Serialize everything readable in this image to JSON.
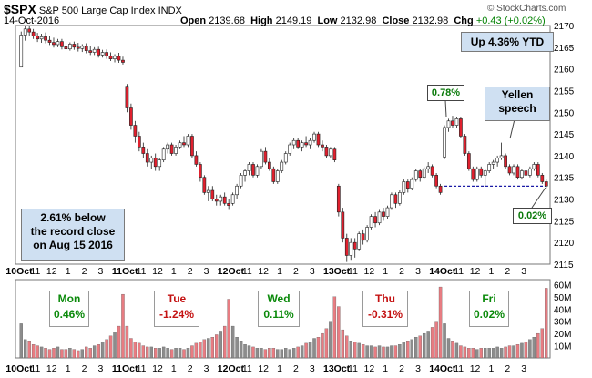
{
  "header": {
    "symbol": "$SPX",
    "name": "S&P 500 Large Cap Index",
    "exchange": "INDX",
    "date": "14-Oct-2016",
    "open_label": "Open",
    "open": "2139.68",
    "high_label": "High",
    "high": "2149.19",
    "low_label": "Low",
    "low": "2132.98",
    "close_label": "Close",
    "close": "2132.98",
    "chg_label": "Chg",
    "chg": "+0.43 (+0.02%)",
    "watermark": "© StockCharts.com"
  },
  "annotations": {
    "ytd": "Up 4.36% YTD",
    "record_line1": "2.61% below",
    "record_line2": "the record close",
    "record_line3": "on Aug 15 2016",
    "open_gain": "0.78%",
    "day_gain": "0.02%",
    "yellen_line1": "Yellen",
    "yellen_line2": "speech"
  },
  "days": [
    {
      "name": "Mon",
      "chg": "0.46%"
    },
    {
      "name": "Tue",
      "chg": "-1.24%"
    },
    {
      "name": "Wed",
      "chg": "0.11%"
    },
    {
      "name": "Thu",
      "chg": "-0.31%"
    },
    {
      "name": "Fri",
      "chg": "0.02%"
    }
  ],
  "colors": {
    "up": "#ffffff",
    "down": "#e0202e",
    "vol_up": "#8c8c8c",
    "vol_down": "#e87c82",
    "grid": "#cfcfcf",
    "ref_line": "#1a1aa6",
    "panel_bg": "#ffffff"
  },
  "chart_data": {
    "type": "candlestick",
    "interval": "intraday",
    "price_axis": {
      "min": 2115,
      "max": 2170,
      "ticks": [
        "2115",
        "2120",
        "2125",
        "2130",
        "2135",
        "2140",
        "2145",
        "2150",
        "2155",
        "2160",
        "2165",
        "2170"
      ]
    },
    "volume_axis": {
      "ticks": [
        "10M",
        "20M",
        "30M",
        "40M",
        "50M",
        "60M"
      ],
      "max": 60
    },
    "x_labels": [
      "10Oct",
      "11",
      "12",
      "1",
      "2",
      "3",
      "11Oct",
      "11",
      "12",
      "1",
      "2",
      "3",
      "12Oct",
      "11",
      "12",
      "1",
      "2",
      "3",
      "13Oct",
      "11",
      "12",
      "1",
      "2",
      "3",
      "14Oct",
      "11",
      "12",
      "1",
      "2",
      "3"
    ],
    "reference_line": 2132.98,
    "candles_per_day": 26,
    "candles": [
      [
        2160.4,
        2168.6,
        2160.4,
        2167.8
      ],
      [
        2167.8,
        2169.9,
        2166.5,
        2169.2
      ],
      [
        2169.2,
        2169.9,
        2167.6,
        2168.5
      ],
      [
        2168.5,
        2169.2,
        2166.9,
        2167.6
      ],
      [
        2167.6,
        2168.3,
        2166.2,
        2166.9
      ],
      [
        2166.9,
        2168.1,
        2166.0,
        2167.4
      ],
      [
        2167.4,
        2168.4,
        2165.9,
        2166.6
      ],
      [
        2166.6,
        2167.6,
        2165.5,
        2166.1
      ],
      [
        2166.1,
        2167.2,
        2164.9,
        2165.6
      ],
      [
        2165.6,
        2166.9,
        2165.0,
        2166.3
      ],
      [
        2166.3,
        2166.9,
        2164.5,
        2165.1
      ],
      [
        2165.1,
        2166.0,
        2164.0,
        2164.6
      ],
      [
        2164.6,
        2166.1,
        2164.2,
        2165.7
      ],
      [
        2165.7,
        2166.3,
        2164.4,
        2165.0
      ],
      [
        2165.0,
        2166.0,
        2164.0,
        2164.7
      ],
      [
        2164.7,
        2165.7,
        2163.9,
        2165.2
      ],
      [
        2165.2,
        2165.9,
        2163.6,
        2164.2
      ],
      [
        2164.2,
        2165.2,
        2163.2,
        2163.8
      ],
      [
        2163.8,
        2165.0,
        2163.2,
        2164.5
      ],
      [
        2164.5,
        2165.1,
        2162.6,
        2163.2
      ],
      [
        2163.2,
        2164.4,
        2162.6,
        2163.8
      ],
      [
        2163.8,
        2164.5,
        2162.3,
        2163.0
      ],
      [
        2163.0,
        2163.8,
        2161.8,
        2162.3
      ],
      [
        2162.3,
        2163.4,
        2161.5,
        2162.9
      ],
      [
        2162.9,
        2163.7,
        2161.4,
        2162.0
      ],
      [
        2162.0,
        2162.8,
        2161.0,
        2161.5
      ],
      [
        2156.0,
        2156.5,
        2150.0,
        2151.0
      ],
      [
        2151.0,
        2152.0,
        2146.0,
        2147.0
      ],
      [
        2147.0,
        2148.0,
        2143.0,
        2144.5
      ],
      [
        2144.5,
        2145.5,
        2141.0,
        2142.0
      ],
      [
        2142.0,
        2143.0,
        2139.5,
        2140.5
      ],
      [
        2140.5,
        2141.5,
        2137.5,
        2138.5
      ],
      [
        2138.5,
        2140.0,
        2137.0,
        2139.5
      ],
      [
        2139.5,
        2140.5,
        2136.5,
        2137.5
      ],
      [
        2137.5,
        2139.5,
        2136.5,
        2139.0
      ],
      [
        2139.0,
        2142.0,
        2138.5,
        2141.5
      ],
      [
        2141.5,
        2143.0,
        2140.5,
        2142.5
      ],
      [
        2142.5,
        2143.0,
        2140.0,
        2140.5
      ],
      [
        2140.5,
        2142.5,
        2140.0,
        2142.0
      ],
      [
        2142.0,
        2143.5,
        2141.5,
        2143.0
      ],
      [
        2143.0,
        2144.5,
        2142.0,
        2142.5
      ],
      [
        2142.5,
        2145.0,
        2142.0,
        2144.5
      ],
      [
        2144.5,
        2145.0,
        2139.5,
        2140.0
      ],
      [
        2140.0,
        2141.0,
        2137.5,
        2138.0
      ],
      [
        2138.0,
        2138.5,
        2134.0,
        2135.0
      ],
      [
        2135.0,
        2135.5,
        2131.0,
        2131.5
      ],
      [
        2131.5,
        2133.0,
        2129.5,
        2132.0
      ],
      [
        2132.0,
        2133.0,
        2129.5,
        2130.0
      ],
      [
        2130.0,
        2131.0,
        2128.5,
        2129.5
      ],
      [
        2129.5,
        2131.0,
        2128.5,
        2130.5
      ],
      [
        2130.5,
        2131.5,
        2128.5,
        2129.0
      ],
      [
        2129.0,
        2130.0,
        2127.5,
        2128.5
      ],
      [
        2129.0,
        2131.5,
        2128.5,
        2131.0
      ],
      [
        2131.0,
        2133.5,
        2130.0,
        2133.0
      ],
      [
        2133.0,
        2136.0,
        2132.5,
        2135.5
      ],
      [
        2135.5,
        2137.0,
        2134.0,
        2136.5
      ],
      [
        2136.5,
        2138.5,
        2135.5,
        2138.0
      ],
      [
        2138.0,
        2138.5,
        2135.0,
        2135.5
      ],
      [
        2135.5,
        2138.0,
        2135.0,
        2137.5
      ],
      [
        2137.5,
        2141.5,
        2137.0,
        2141.0
      ],
      [
        2141.0,
        2142.0,
        2138.0,
        2138.5
      ],
      [
        2138.5,
        2139.5,
        2136.5,
        2137.0
      ],
      [
        2137.0,
        2137.5,
        2133.5,
        2134.0
      ],
      [
        2134.0,
        2137.0,
        2133.5,
        2136.5
      ],
      [
        2136.5,
        2139.0,
        2136.0,
        2138.5
      ],
      [
        2138.5,
        2141.0,
        2138.0,
        2140.5
      ],
      [
        2140.5,
        2143.0,
        2140.0,
        2142.5
      ],
      [
        2142.5,
        2144.0,
        2141.5,
        2143.5
      ],
      [
        2143.5,
        2144.0,
        2141.5,
        2142.0
      ],
      [
        2142.0,
        2143.5,
        2141.0,
        2143.0
      ],
      [
        2143.0,
        2144.5,
        2142.0,
        2142.5
      ],
      [
        2142.5,
        2144.0,
        2141.5,
        2143.5
      ],
      [
        2143.5,
        2145.5,
        2143.0,
        2145.0
      ],
      [
        2145.0,
        2145.5,
        2142.0,
        2142.5
      ],
      [
        2142.5,
        2143.5,
        2141.0,
        2142.0
      ],
      [
        2142.0,
        2142.5,
        2139.5,
        2140.0
      ],
      [
        2140.0,
        2142.0,
        2139.5,
        2141.5
      ],
      [
        2141.5,
        2142.0,
        2138.5,
        2139.0
      ],
      [
        2133.0,
        2133.5,
        2126.0,
        2127.0
      ],
      [
        2127.0,
        2128.0,
        2120.0,
        2121.0
      ],
      [
        2121.0,
        2122.0,
        2115.5,
        2117.0
      ],
      [
        2117.0,
        2121.0,
        2116.0,
        2120.0
      ],
      [
        2120.0,
        2121.0,
        2116.5,
        2118.5
      ],
      [
        2118.5,
        2122.5,
        2118.0,
        2122.0
      ],
      [
        2122.0,
        2123.0,
        2119.5,
        2120.5
      ],
      [
        2120.5,
        2124.0,
        2120.0,
        2123.5
      ],
      [
        2123.5,
        2126.5,
        2123.0,
        2126.0
      ],
      [
        2126.0,
        2127.0,
        2123.5,
        2124.5
      ],
      [
        2124.5,
        2127.5,
        2124.0,
        2127.0
      ],
      [
        2127.0,
        2128.0,
        2125.0,
        2126.0
      ],
      [
        2126.0,
        2128.5,
        2125.5,
        2128.0
      ],
      [
        2128.0,
        2131.5,
        2127.5,
        2131.0
      ],
      [
        2131.0,
        2131.5,
        2128.0,
        2129.0
      ],
      [
        2129.0,
        2132.0,
        2128.5,
        2131.5
      ],
      [
        2131.5,
        2134.5,
        2131.0,
        2134.0
      ],
      [
        2134.0,
        2134.5,
        2131.5,
        2132.5
      ],
      [
        2132.5,
        2135.0,
        2132.0,
        2134.5
      ],
      [
        2134.5,
        2137.0,
        2134.0,
        2136.5
      ],
      [
        2136.5,
        2137.0,
        2134.0,
        2135.0
      ],
      [
        2135.0,
        2137.5,
        2134.5,
        2137.0
      ],
      [
        2137.0,
        2138.5,
        2136.0,
        2137.5
      ],
      [
        2137.5,
        2138.0,
        2135.0,
        2135.5
      ],
      [
        2135.5,
        2136.0,
        2132.5,
        2133.0
      ],
      [
        2133.0,
        2133.5,
        2131.0,
        2131.5
      ],
      [
        2139.7,
        2147.0,
        2139.2,
        2146.5
      ],
      [
        2146.5,
        2148.5,
        2145.5,
        2148.0
      ],
      [
        2148.0,
        2149.2,
        2146.5,
        2147.0
      ],
      [
        2147.0,
        2149.0,
        2146.5,
        2148.5
      ],
      [
        2148.5,
        2148.8,
        2144.0,
        2144.5
      ],
      [
        2144.5,
        2145.0,
        2140.0,
        2140.5
      ],
      [
        2140.5,
        2141.0,
        2136.5,
        2137.0
      ],
      [
        2137.0,
        2137.5,
        2134.0,
        2134.5
      ],
      [
        2134.5,
        2137.5,
        2134.0,
        2137.0
      ],
      [
        2137.0,
        2137.5,
        2135.0,
        2135.5
      ],
      [
        2135.5,
        2137.0,
        2133.0,
        2136.5
      ],
      [
        2136.5,
        2138.5,
        2136.0,
        2138.0
      ],
      [
        2138.0,
        2139.0,
        2137.0,
        2138.5
      ],
      [
        2138.5,
        2140.0,
        2137.5,
        2139.5
      ],
      [
        2139.5,
        2143.0,
        2139.0,
        2140.0
      ],
      [
        2140.0,
        2140.5,
        2137.0,
        2137.5
      ],
      [
        2137.5,
        2138.0,
        2135.5,
        2136.0
      ],
      [
        2136.0,
        2138.0,
        2135.5,
        2137.5
      ],
      [
        2137.5,
        2138.0,
        2134.5,
        2135.0
      ],
      [
        2135.0,
        2137.0,
        2134.5,
        2136.5
      ],
      [
        2136.5,
        2137.0,
        2135.0,
        2135.5
      ],
      [
        2135.5,
        2137.5,
        2135.0,
        2137.0
      ],
      [
        2137.0,
        2138.5,
        2136.5,
        2138.0
      ],
      [
        2138.0,
        2138.5,
        2135.0,
        2135.5
      ],
      [
        2135.5,
        2136.0,
        2133.5,
        2134.0
      ],
      [
        2134.0,
        2134.5,
        2132.5,
        2133.0
      ]
    ],
    "volume": [
      [
        28,
        15,
        14,
        11,
        10,
        9,
        8,
        7,
        8,
        9,
        7,
        7,
        8,
        7,
        6,
        7,
        9,
        8,
        10,
        11,
        13,
        15,
        18,
        21,
        26,
        52
      ],
      [
        26,
        16,
        13,
        12,
        10,
        9,
        9,
        8,
        8,
        9,
        8,
        7,
        8,
        8,
        7,
        8,
        10,
        12,
        13,
        15,
        16,
        17,
        19,
        22,
        26,
        48
      ],
      [
        26,
        17,
        14,
        11,
        10,
        9,
        8,
        8,
        7,
        8,
        8,
        7,
        7,
        8,
        7,
        8,
        9,
        10,
        12,
        13,
        16,
        17,
        20,
        24,
        30,
        50
      ],
      [
        42,
        23,
        18,
        14,
        13,
        12,
        11,
        10,
        10,
        9,
        10,
        9,
        9,
        10,
        10,
        11,
        13,
        14,
        15,
        17,
        18,
        20,
        22,
        25,
        30,
        58
      ],
      [
        28,
        16,
        14,
        12,
        10,
        9,
        8,
        8,
        7,
        8,
        8,
        8,
        8,
        9,
        8,
        9,
        10,
        10,
        11,
        12,
        13,
        15,
        17,
        20,
        24,
        57
      ]
    ]
  }
}
